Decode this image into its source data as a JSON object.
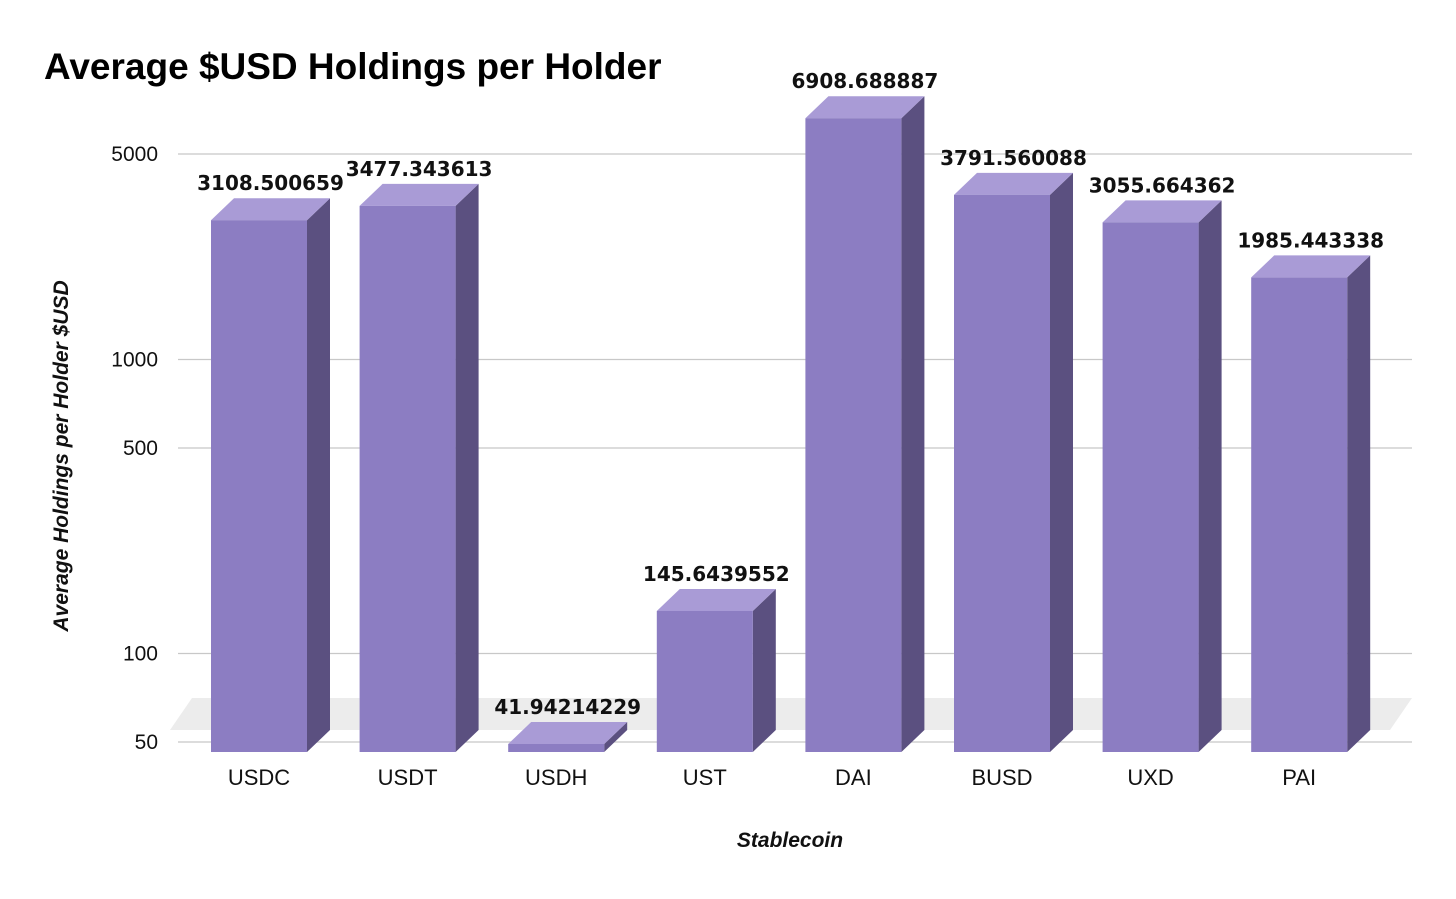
{
  "chart_data": {
    "type": "bar",
    "title": "Average $USD Holdings per Holder",
    "xlabel": "Stablecoin",
    "ylabel": "Average Holdings per Holder $USD",
    "categories": [
      "USDC",
      "USDT",
      "USDH",
      "UST",
      "DAI",
      "BUSD",
      "UXD",
      "PAI"
    ],
    "values": [
      3108.500659,
      3477.343613,
      41.94214229,
      145.6439552,
      6908.688887,
      3791.560088,
      3055.664362,
      1985.443338
    ],
    "data_labels": [
      "3108.500659",
      "3477.343613",
      "41.94214229",
      "145.6439552",
      "6908.688887",
      "3791.560088",
      "3055.664362",
      "1985.443338"
    ],
    "y_scale": "log",
    "y_ticks": [
      50,
      100,
      500,
      1000,
      5000
    ],
    "ylim": [
      30,
      8000
    ],
    "grid": true,
    "legend": "none",
    "style": "3d-column",
    "colors": {
      "bar_front": "#8c7dc2",
      "bar_top": "#a99bd6",
      "bar_side": "#5b5080",
      "gridline": "#c8c8c8",
      "floor": "#ececec"
    }
  }
}
